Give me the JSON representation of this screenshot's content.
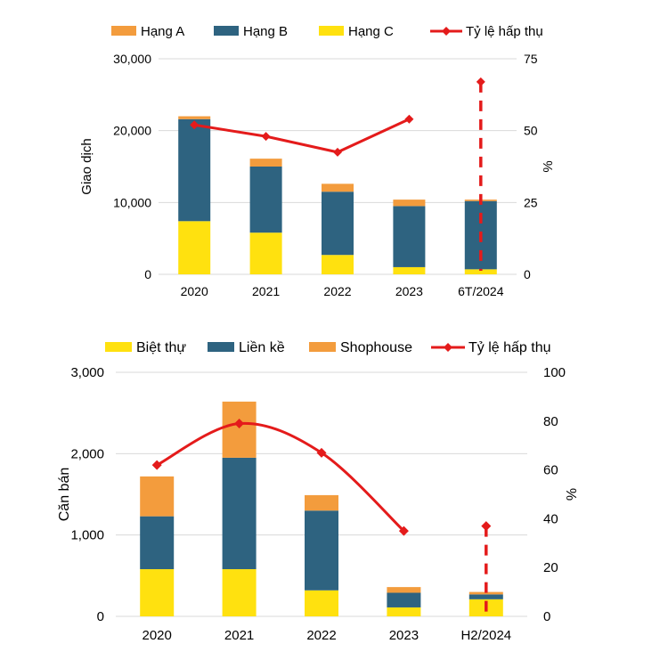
{
  "colors": {
    "orange": "#F39C3D",
    "blue": "#2E6380",
    "yellow": "#FFE10F",
    "red": "#E41B1B",
    "grid": "#D9D9D9"
  },
  "chart_data": [
    {
      "type": "bar",
      "stacked": true,
      "title": "",
      "categories": [
        "2020",
        "2021",
        "2022",
        "2023",
        "6T/2024"
      ],
      "series": [
        {
          "name": "Hạng A",
          "values": [
            400,
            1100,
            1100,
            900,
            200
          ]
        },
        {
          "name": "Hạng B",
          "values": [
            14200,
            9200,
            8800,
            8500,
            9500
          ]
        },
        {
          "name": "Hạng C",
          "values": [
            7400,
            5800,
            2700,
            1000,
            700
          ]
        }
      ],
      "line": {
        "name": "Tỷ lệ hấp thụ",
        "values": [
          52,
          48,
          42.5,
          54,
          67
        ],
        "dashed_last": true
      },
      "legend": [
        "Hạng A",
        "Hạng B",
        "Hạng C",
        "Tỷ lệ hấp thụ"
      ],
      "ylabel": "Giao dịch",
      "y2label": "%",
      "ylim": [
        0,
        30000
      ],
      "y2lim": [
        0,
        75
      ],
      "yticks": [
        "0",
        "10,000",
        "20,000",
        "30,000"
      ],
      "y2ticks": [
        "0",
        "25",
        "50",
        "75"
      ]
    },
    {
      "type": "bar",
      "stacked": true,
      "title": "",
      "categories": [
        "2020",
        "2021",
        "2022",
        "2023",
        "H2/2024"
      ],
      "series": [
        {
          "name": "Biệt thự",
          "values": [
            580,
            580,
            320,
            110,
            210
          ]
        },
        {
          "name": "Liền kề",
          "values": [
            650,
            1370,
            980,
            180,
            60
          ]
        },
        {
          "name": "Shophouse",
          "values": [
            490,
            690,
            190,
            70,
            30
          ]
        }
      ],
      "line": {
        "name": "Tỷ lệ hấp thụ",
        "values": [
          62,
          79,
          67,
          35,
          37
        ],
        "dashed_last": true
      },
      "legend": [
        "Biệt thự",
        "Liền kề",
        "Shophouse",
        "Tỷ lệ hấp thụ"
      ],
      "ylabel": "Căn bán",
      "y2label": "%",
      "ylim": [
        0,
        3000
      ],
      "y2lim": [
        0,
        100
      ],
      "yticks": [
        "0",
        "1,000",
        "2,000",
        "3,000"
      ],
      "y2ticks": [
        "0",
        "20",
        "40",
        "60",
        "80",
        "100"
      ]
    }
  ]
}
